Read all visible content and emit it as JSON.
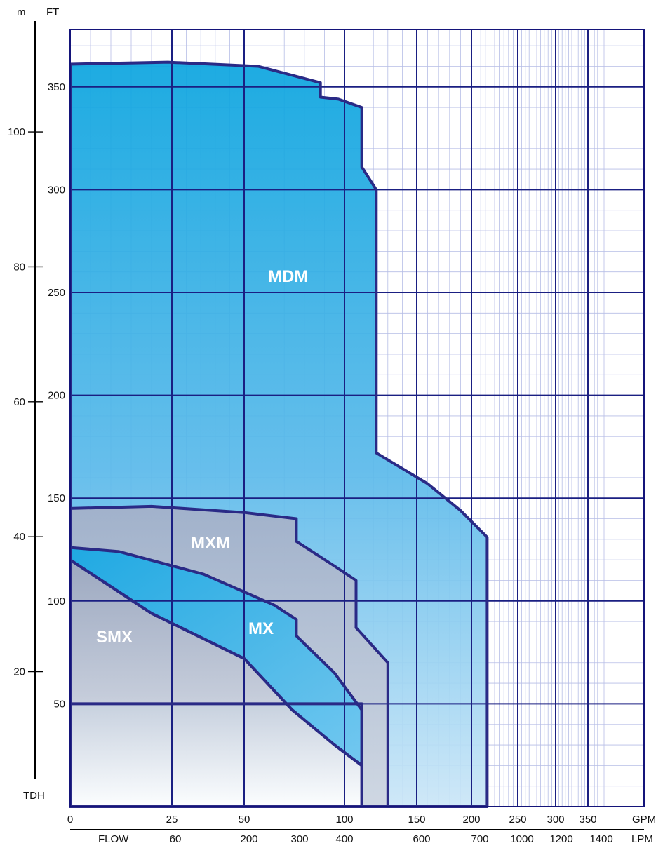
{
  "chart_data": {
    "type": "area",
    "title": "",
    "units": {
      "m": "m",
      "ft": "FT",
      "tdh": "TDH",
      "gpm": "GPM",
      "lpm": "LPM",
      "flow": "FLOW"
    },
    "y_m_ticks": [
      "100",
      "80",
      "60",
      "40",
      "20"
    ],
    "y_ft_ticks": [
      "350",
      "300",
      "250",
      "200",
      "150",
      "100",
      "50"
    ],
    "x_gpm_ticks": [
      "0",
      "25",
      "50",
      "100",
      "150",
      "200",
      "250",
      "300",
      "350"
    ],
    "x_lpm_ticks": [
      "60",
      "200",
      "300",
      "400",
      "600",
      "700",
      "1000",
      "1200",
      "1400"
    ],
    "series": [
      {
        "name": "MDM",
        "color": "#0aa6e0",
        "points": [
          [
            0,
            361
          ],
          [
            24,
            362
          ],
          [
            57,
            360
          ],
          [
            88,
            352
          ],
          [
            88,
            345
          ],
          [
            97,
            344
          ],
          [
            112,
            340
          ],
          [
            112,
            311
          ],
          [
            122,
            300
          ],
          [
            122,
            172
          ],
          [
            160,
            157
          ],
          [
            190,
            144
          ],
          [
            217,
            131
          ],
          [
            217,
            0
          ],
          [
            0,
            0
          ]
        ]
      },
      {
        "name": "MXM",
        "color": "#9aa8c4",
        "points": [
          [
            0,
            145
          ],
          [
            20,
            146
          ],
          [
            50,
            143
          ],
          [
            76,
            140
          ],
          [
            76,
            129
          ],
          [
            95,
            117
          ],
          [
            108,
            110
          ],
          [
            108,
            87
          ],
          [
            130,
            70
          ],
          [
            130,
            0
          ],
          [
            112,
            0
          ],
          [
            112,
            50
          ],
          [
            95,
            50
          ],
          [
            0,
            50
          ]
        ]
      },
      {
        "name": "MX",
        "color": "#3bb2ea",
        "points": [
          [
            0,
            126
          ],
          [
            12,
            124
          ],
          [
            36,
            113
          ],
          [
            65,
            98
          ],
          [
            76,
            91
          ],
          [
            76,
            83
          ],
          [
            95,
            65
          ],
          [
            112,
            47
          ],
          [
            112,
            20
          ],
          [
            95,
            30
          ],
          [
            74,
            47
          ],
          [
            50,
            72
          ],
          [
            20,
            94
          ],
          [
            0,
            120
          ]
        ]
      },
      {
        "name": "SMX",
        "color": "#aab4c8",
        "points": [
          [
            0,
            120
          ],
          [
            20,
            94
          ],
          [
            50,
            72
          ],
          [
            74,
            47
          ],
          [
            95,
            30
          ],
          [
            112,
            20
          ],
          [
            112,
            0
          ],
          [
            0,
            0
          ]
        ]
      }
    ]
  }
}
